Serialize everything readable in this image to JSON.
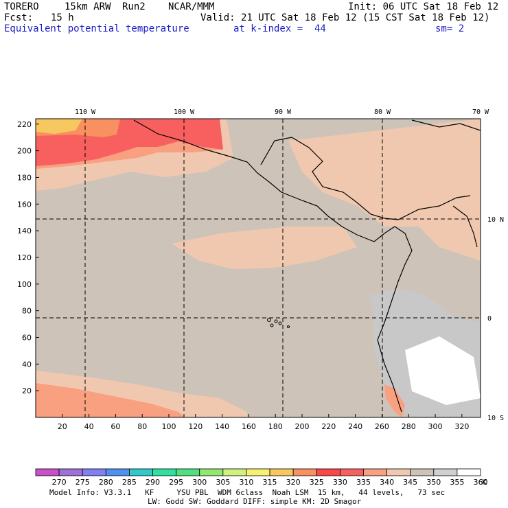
{
  "header": {
    "model": "TORERO",
    "resolution": "15km ARW",
    "run": "Run2",
    "org": "NCAR/MMM",
    "init": "Init: 06 UTC Sat 18 Feb 12",
    "fcst_label": "Fcst:",
    "fcst_value": "15 h",
    "valid": "Valid: 21 UTC Sat 18 Feb 12 (15 CST Sat 18 Feb 12)",
    "field": "Equivalent potential temperature",
    "level": "at k-index =  44",
    "smoothing": "sm= 2"
  },
  "map": {
    "top_labels": [
      "110 W",
      "100 W",
      "90 W",
      "80 W",
      "70 W"
    ],
    "right_labels": [
      "10 N",
      "0",
      "10 S"
    ],
    "y_ticks": [
      220,
      200,
      180,
      160,
      140,
      120,
      100,
      80,
      60,
      40,
      20
    ],
    "x_ticks": [
      20,
      40,
      60,
      80,
      100,
      120,
      140,
      160,
      180,
      200,
      220,
      240,
      260,
      280,
      300,
      320
    ],
    "x_range": [
      0,
      334
    ],
    "y_range": [
      0,
      224
    ],
    "meridian_grid_x": [
      39.5,
      113.3,
      187.1,
      260.9
    ],
    "parallel_grid_y": [
      149.5,
      75.8
    ],
    "background_color": "#cdc3b9",
    "land_color": "#c8c8c8"
  },
  "colorbar": {
    "levels": [
      "270",
      "275",
      "280",
      "285",
      "290",
      "295",
      "300",
      "305",
      "310",
      "315",
      "320",
      "325",
      "330",
      "335",
      "340",
      "345",
      "350",
      "355",
      "360"
    ],
    "unit": "K",
    "colors": [
      "#c850c8",
      "#a070d8",
      "#8080f0",
      "#5090f0",
      "#30c8c8",
      "#30e0a0",
      "#50e080",
      "#90e870",
      "#d0f080",
      "#f8f070",
      "#f8c860",
      "#f89060",
      "#f84848",
      "#f86060",
      "#f8a080",
      "#f0c8b0",
      "#cdc3b9",
      "#d0d0d0",
      "#ffffff"
    ]
  },
  "footer": {
    "line1": "Model Info: V3.3.1   KF     YSU PBL  WDM 6class  Noah LSM  15 km,   44 levels,   73 sec",
    "line2": "LW: Godd SW: Goddard DIFF: simple KM: 2D Smagor"
  }
}
